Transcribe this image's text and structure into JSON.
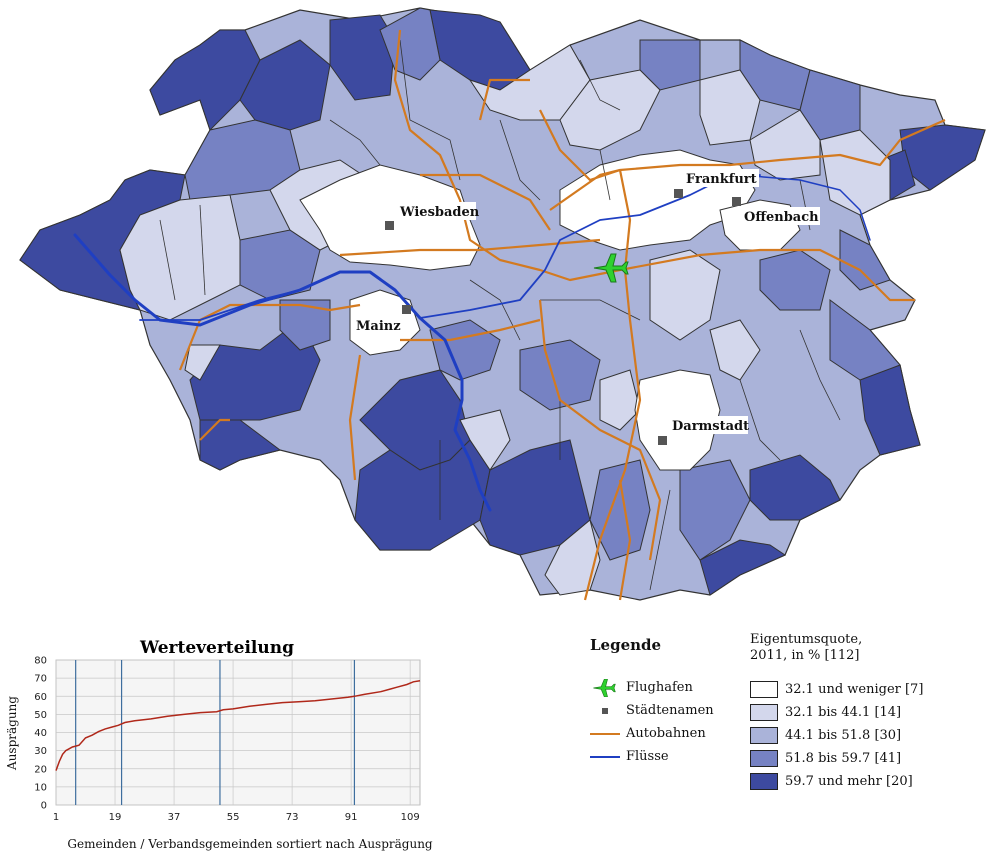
{
  "colors": {
    "class1": "#ffffff",
    "class2": "#d3d7ec",
    "class3": "#aab3d9",
    "class4": "#7682c3",
    "class5": "#3d4aa0",
    "border": "#333333",
    "autobahn": "#d37a20",
    "river": "#1f3fc2",
    "airport": "#2fd12f",
    "city": "#555555"
  },
  "map": {
    "cities": [
      {
        "name": "Wiesbaden"
      },
      {
        "name": "Mainz"
      },
      {
        "name": "Frankfurt"
      },
      {
        "name": "Offenbach"
      },
      {
        "name": "Darmstadt"
      }
    ]
  },
  "distribution": {
    "title": "Werteverteilung",
    "ylabel": "Ausprägung",
    "xlabel": "Gemeinden / Verbandsgemeinden sortiert nach Ausprägung"
  },
  "chart_data": {
    "type": "line",
    "title": "Werteverteilung",
    "xlabel": "Gemeinden / Verbandsgemeinden sortiert nach Ausprägung",
    "ylabel": "Ausprägung",
    "x_ticks": [
      1,
      19,
      37,
      55,
      73,
      91,
      109
    ],
    "y_ticks": [
      0,
      10,
      20,
      30,
      40,
      50,
      60,
      70,
      80
    ],
    "xlim": [
      1,
      112
    ],
    "ylim": [
      0,
      80
    ],
    "grid": true,
    "class_breaks": [
      7,
      21,
      51,
      92
    ],
    "series": [
      {
        "x": [
          1,
          2,
          3,
          4,
          5,
          6,
          7,
          8,
          10,
          12,
          14,
          16,
          18,
          20,
          22,
          25,
          30,
          35,
          40,
          45,
          50,
          52,
          55,
          60,
          65,
          70,
          75,
          80,
          85,
          90,
          92,
          95,
          100,
          103,
          105,
          108,
          110,
          112
        ],
        "values": [
          19,
          24,
          28,
          30,
          31,
          32,
          32.5,
          33,
          37,
          38.5,
          40.5,
          42,
          43,
          44,
          45.5,
          46.5,
          47.5,
          49,
          50,
          51,
          51.5,
          52.5,
          53,
          54.5,
          55.5,
          56.5,
          57,
          57.5,
          58.5,
          59.5,
          60,
          61,
          62.5,
          64,
          65,
          66.5,
          68,
          68.5
        ]
      }
    ]
  },
  "legend": {
    "title": "Legende",
    "items": [
      {
        "label": "Flughafen",
        "symbol": "airplane-icon"
      },
      {
        "label": "Städtenamen",
        "symbol": "city-square-icon"
      },
      {
        "label": "Autobahnen",
        "symbol": "orange-line"
      },
      {
        "label": "Flüsse",
        "symbol": "blue-line"
      }
    ]
  },
  "classes": {
    "title_line1": "Eigentumsquote,",
    "title_line2": "2011, in % [112]",
    "items": [
      {
        "label": "32.1 und weniger [7]",
        "color": "#ffffff"
      },
      {
        "label": "32.1 bis 44.1  [14]",
        "color": "#d3d7ec"
      },
      {
        "label": "44.1 bis 51.8  [30]",
        "color": "#aab3d9"
      },
      {
        "label": "51.8 bis 59.7  [41]",
        "color": "#7682c3"
      },
      {
        "label": "59.7 und mehr [20]",
        "color": "#3d4aa0"
      }
    ]
  }
}
